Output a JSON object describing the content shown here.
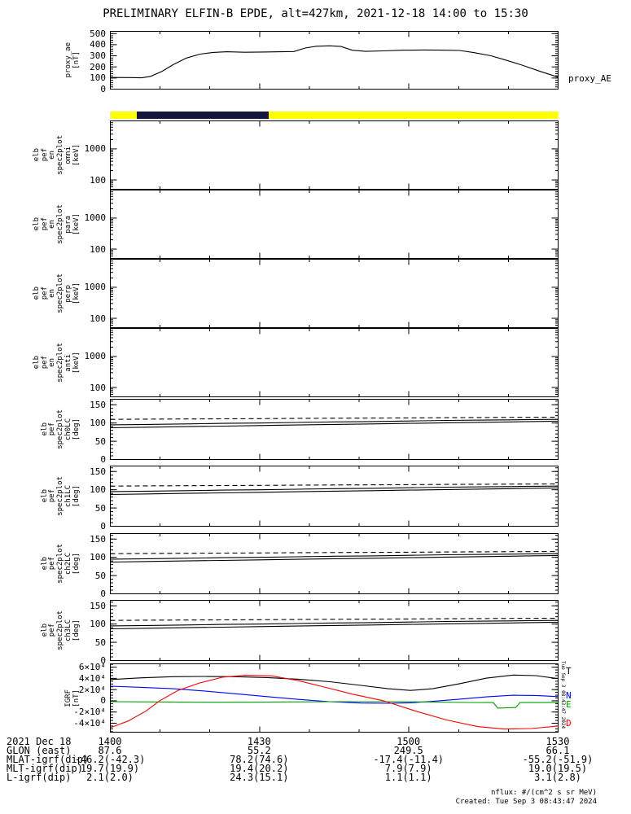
{
  "title": "PRELIMINARY ELFIN-B EPDE, alt=427km, 2021-12-18 14:00 to 15:30",
  "side_stamp": "Tue Sep 3 08:43:47 2024",
  "footer": {
    "flux_units": "nflux: #/(cm^2 s sr MeV)",
    "created": "Created: Tue Sep  3 08:43:47 2024"
  },
  "time_axis": {
    "date_label": "2021 Dec 18",
    "tick_labels": [
      "1400",
      "1430",
      "1500",
      "1530"
    ]
  },
  "annotation_rows": [
    {
      "label": "GLON (east)",
      "values": [
        "87.6",
        "55.2",
        "249.5",
        "66.1"
      ]
    },
    {
      "label": "MLAT-igrf(dip)",
      "values": [
        "-46.2(-42.3)",
        "78.2(74.6)",
        "-17.4(-11.4)",
        "-55.2(-51.9)"
      ]
    },
    {
      "label": "MLT-igrf(dip)",
      "values": [
        "19.7(19.9)",
        "19.4(20.2)",
        "7.9(7.9)",
        "19.0(19.5)"
      ]
    },
    {
      "label": "L-igrf(dip)",
      "values": [
        "2.1(2.0)",
        "24.3(15.1)",
        "1.1(1.1)",
        "3.1(2.8)"
      ]
    }
  ],
  "shared": {
    "pitch_x": [
      0,
      0.083,
      0.167,
      0.25,
      0.333,
      0.417,
      0.5,
      0.583,
      0.667,
      0.75,
      0.833,
      0.917,
      1
    ],
    "pitch_antilc": [
      110,
      110.5,
      111,
      111.5,
      112,
      112.5,
      113,
      113.5,
      114,
      114.5,
      115,
      115.5,
      116
    ],
    "pitch_lc_a": [
      95,
      96,
      97.5,
      99,
      100,
      101.5,
      103,
      104,
      105.5,
      107,
      108,
      109,
      110
    ],
    "pitch_lc_b": [
      87,
      88.5,
      90,
      91.5,
      93,
      94.5,
      96,
      97.5,
      99,
      100.5,
      102,
      103.5,
      105
    ]
  },
  "chart_data": [
    {
      "id": "proxy_ae",
      "type": "line",
      "ylabel_lines": [
        "proxy_ae",
        "[nT]"
      ],
      "right_label": "proxy_AE",
      "ylim": [
        0,
        520
      ],
      "yticks": [
        0,
        100,
        200,
        300,
        400,
        500
      ],
      "yminor": 20,
      "series": [
        {
          "name": "proxy_AE",
          "color": "#000000",
          "x": [
            0,
            0.045,
            0.07,
            0.09,
            0.115,
            0.14,
            0.17,
            0.2,
            0.23,
            0.26,
            0.3,
            0.34,
            0.38,
            0.41,
            0.435,
            0.46,
            0.49,
            0.515,
            0.54,
            0.57,
            0.61,
            0.65,
            0.7,
            0.74,
            0.78,
            0.81,
            0.85,
            0.88,
            0.92,
            0.96,
            1
          ],
          "y": [
            105,
            104,
            102,
            115,
            160,
            220,
            280,
            315,
            330,
            336,
            332,
            334,
            336,
            338,
            370,
            386,
            390,
            384,
            350,
            340,
            344,
            350,
            352,
            351,
            348,
            330,
            300,
            265,
            215,
            160,
            108
          ]
        }
      ]
    },
    {
      "id": "orbit_bar",
      "type": "strip",
      "segments": [
        {
          "from": 0,
          "to": 1,
          "color": "#ffff00"
        },
        {
          "from": 0.06,
          "to": 0.355,
          "color": "#14143c"
        }
      ]
    },
    {
      "id": "spec_omni",
      "type": "logpanel",
      "ylog": true,
      "ylim": [
        50,
        8000
      ],
      "yticks": [
        100,
        1000
      ],
      "ylabel_lines": [
        "elb",
        "pef",
        "en",
        "spec2plot",
        "omni",
        "[keV]"
      ],
      "yminors": [
        60,
        70,
        80,
        90,
        200,
        300,
        400,
        500,
        600,
        700,
        800,
        900,
        2000,
        3000,
        4000,
        5000,
        6000,
        7000
      ]
    },
    {
      "id": "spec_para",
      "type": "logpanel",
      "ylog": true,
      "ylim": [
        50,
        8000
      ],
      "yticks": [
        100,
        1000
      ],
      "ylabel_lines": [
        "elb",
        "pef",
        "en",
        "spec2plot",
        "para",
        "[keV]"
      ],
      "yminors": [
        60,
        70,
        80,
        90,
        200,
        300,
        400,
        500,
        600,
        700,
        800,
        900,
        2000,
        3000,
        4000,
        5000,
        6000,
        7000
      ]
    },
    {
      "id": "spec_perp",
      "type": "logpanel",
      "ylog": true,
      "ylim": [
        50,
        8000
      ],
      "yticks": [
        100,
        1000
      ],
      "ylabel_lines": [
        "elb",
        "pef",
        "en",
        "spec2plot",
        "perp",
        "[keV]"
      ],
      "yminors": [
        60,
        70,
        80,
        90,
        200,
        300,
        400,
        500,
        600,
        700,
        800,
        900,
        2000,
        3000,
        4000,
        5000,
        6000,
        7000
      ]
    },
    {
      "id": "spec_anti",
      "type": "logpanel",
      "ylog": true,
      "ylim": [
        50,
        8000
      ],
      "yticks": [
        100,
        1000
      ],
      "ylabel_lines": [
        "elb",
        "pef",
        "en",
        "spec2plot",
        "anti",
        "[keV]"
      ],
      "yminors": [
        60,
        70,
        80,
        90,
        200,
        300,
        400,
        500,
        600,
        700,
        800,
        900,
        2000,
        3000,
        4000,
        5000,
        6000,
        7000
      ]
    },
    {
      "id": "pitch_ch0",
      "type": "line",
      "ylabel_lines": [
        "elb",
        "pef",
        "spec2plot",
        "ch0LC",
        "[deg]"
      ],
      "ylim": [
        0,
        165
      ],
      "yticks": [
        0,
        50,
        100,
        150
      ],
      "yminor": 10,
      "series_shared": [
        {
          "name": "anti-loss-cone",
          "color": "#000000",
          "dashed": true,
          "x": "pitch_x",
          "y": "pitch_antilc"
        },
        {
          "name": "loss-cone-a",
          "color": "#000000",
          "x": "pitch_x",
          "y": "pitch_lc_a"
        },
        {
          "name": "loss-cone-b",
          "color": "#000000",
          "x": "pitch_x",
          "y": "pitch_lc_b"
        }
      ]
    },
    {
      "id": "pitch_ch1",
      "type": "line",
      "ylabel_lines": [
        "elb",
        "pef",
        "spec2plot",
        "ch1LC",
        "[deg]"
      ],
      "ylim": [
        0,
        165
      ],
      "yticks": [
        0,
        50,
        100,
        150
      ],
      "yminor": 10,
      "series_shared": [
        {
          "name": "anti-loss-cone",
          "color": "#000000",
          "dashed": true,
          "x": "pitch_x",
          "y": "pitch_antilc"
        },
        {
          "name": "loss-cone-a",
          "color": "#000000",
          "x": "pitch_x",
          "y": "pitch_lc_a"
        },
        {
          "name": "loss-cone-b",
          "color": "#000000",
          "x": "pitch_x",
          "y": "pitch_lc_b"
        }
      ]
    },
    {
      "id": "pitch_ch2",
      "type": "line",
      "ylabel_lines": [
        "elb",
        "pef",
        "spec2plot",
        "ch2LC",
        "[deg]"
      ],
      "ylim": [
        0,
        165
      ],
      "yticks": [
        0,
        50,
        100,
        150
      ],
      "yminor": 10,
      "series_shared": [
        {
          "name": "anti-loss-cone",
          "color": "#000000",
          "dashed": true,
          "x": "pitch_x",
          "y": "pitch_antilc"
        },
        {
          "name": "loss-cone-a",
          "color": "#000000",
          "x": "pitch_x",
          "y": "pitch_lc_a"
        },
        {
          "name": "loss-cone-b",
          "color": "#000000",
          "x": "pitch_x",
          "y": "pitch_lc_b"
        }
      ]
    },
    {
      "id": "pitch_ch3",
      "type": "line",
      "ylabel_lines": [
        "elb",
        "pef",
        "spec2plot",
        "ch3LC",
        "[deg]"
      ],
      "ylim": [
        0,
        165
      ],
      "yticks": [
        0,
        50,
        100,
        150
      ],
      "yminor": 10,
      "series_shared": [
        {
          "name": "anti-loss-cone",
          "color": "#000000",
          "dashed": true,
          "x": "pitch_x",
          "y": "pitch_antilc"
        },
        {
          "name": "loss-cone-a",
          "color": "#000000",
          "x": "pitch_x",
          "y": "pitch_lc_a"
        },
        {
          "name": "loss-cone-b",
          "color": "#000000",
          "x": "pitch_x",
          "y": "pitch_lc_b"
        }
      ]
    },
    {
      "id": "igrf",
      "type": "line",
      "ylabel_lines": [
        "IGRF",
        "[nT]"
      ],
      "ylim": [
        -56000,
        66000
      ],
      "yminor": 5000,
      "yticks": [
        {
          "v": 60000,
          "t": "6×10⁴"
        },
        {
          "v": 40000,
          "t": "4×10⁴"
        },
        {
          "v": 20000,
          "t": "2×10⁴"
        },
        {
          "v": 0,
          "t": "0"
        },
        {
          "v": -20000,
          "t": "-2×10⁴"
        },
        {
          "v": -40000,
          "t": "-4×10⁴"
        }
      ],
      "series": [
        {
          "name": "T",
          "color": "#000000",
          "label_v": 52000,
          "x": [
            0,
            0.07,
            0.14,
            0.21,
            0.28,
            0.35,
            0.42,
            0.49,
            0.56,
            0.62,
            0.67,
            0.72,
            0.78,
            0.84,
            0.9,
            0.95,
            1
          ],
          "y": [
            38000,
            41000,
            43000,
            43500,
            43000,
            41500,
            38500,
            34000,
            27500,
            21500,
            18500,
            21500,
            30500,
            40500,
            46000,
            45000,
            39500
          ]
        },
        {
          "name": "N",
          "color": "#0000ff",
          "label_v": 8000,
          "x": [
            0,
            0.07,
            0.14,
            0.21,
            0.28,
            0.35,
            0.42,
            0.49,
            0.56,
            0.62,
            0.67,
            0.72,
            0.78,
            0.84,
            0.9,
            0.95,
            1
          ],
          "y": [
            26000,
            24000,
            21500,
            17500,
            12500,
            7500,
            2500,
            -1500,
            -4000,
            -4500,
            -3500,
            -1000,
            3000,
            7000,
            10000,
            9500,
            7500
          ]
        },
        {
          "name": "E",
          "color": "#00a000",
          "label_v": -7000,
          "x": [
            0,
            0.1,
            0.2,
            0.3,
            0.4,
            0.5,
            0.6,
            0.7,
            0.8,
            0.855,
            0.865,
            0.905,
            0.915,
            1
          ],
          "y": [
            -1500,
            -2000,
            -2500,
            -2500,
            -2000,
            -1500,
            -1500,
            -2000,
            -3000,
            -3200,
            -13000,
            -12000,
            -3200,
            -2800
          ]
        },
        {
          "name": "D",
          "color": "#ff0000",
          "label_v": -40000,
          "x": [
            0,
            0.04,
            0.08,
            0.11,
            0.15,
            0.2,
            0.25,
            0.3,
            0.36,
            0.42,
            0.48,
            0.54,
            0.61,
            0.68,
            0.75,
            0.82,
            0.88,
            0.94,
            1
          ],
          "y": [
            -48000,
            -36000,
            -18000,
            0,
            18000,
            32000,
            42000,
            45500,
            44500,
            36000,
            24000,
            12000,
            0,
            -18000,
            -34000,
            -46000,
            -50500,
            -49500,
            -45000
          ]
        }
      ]
    }
  ]
}
